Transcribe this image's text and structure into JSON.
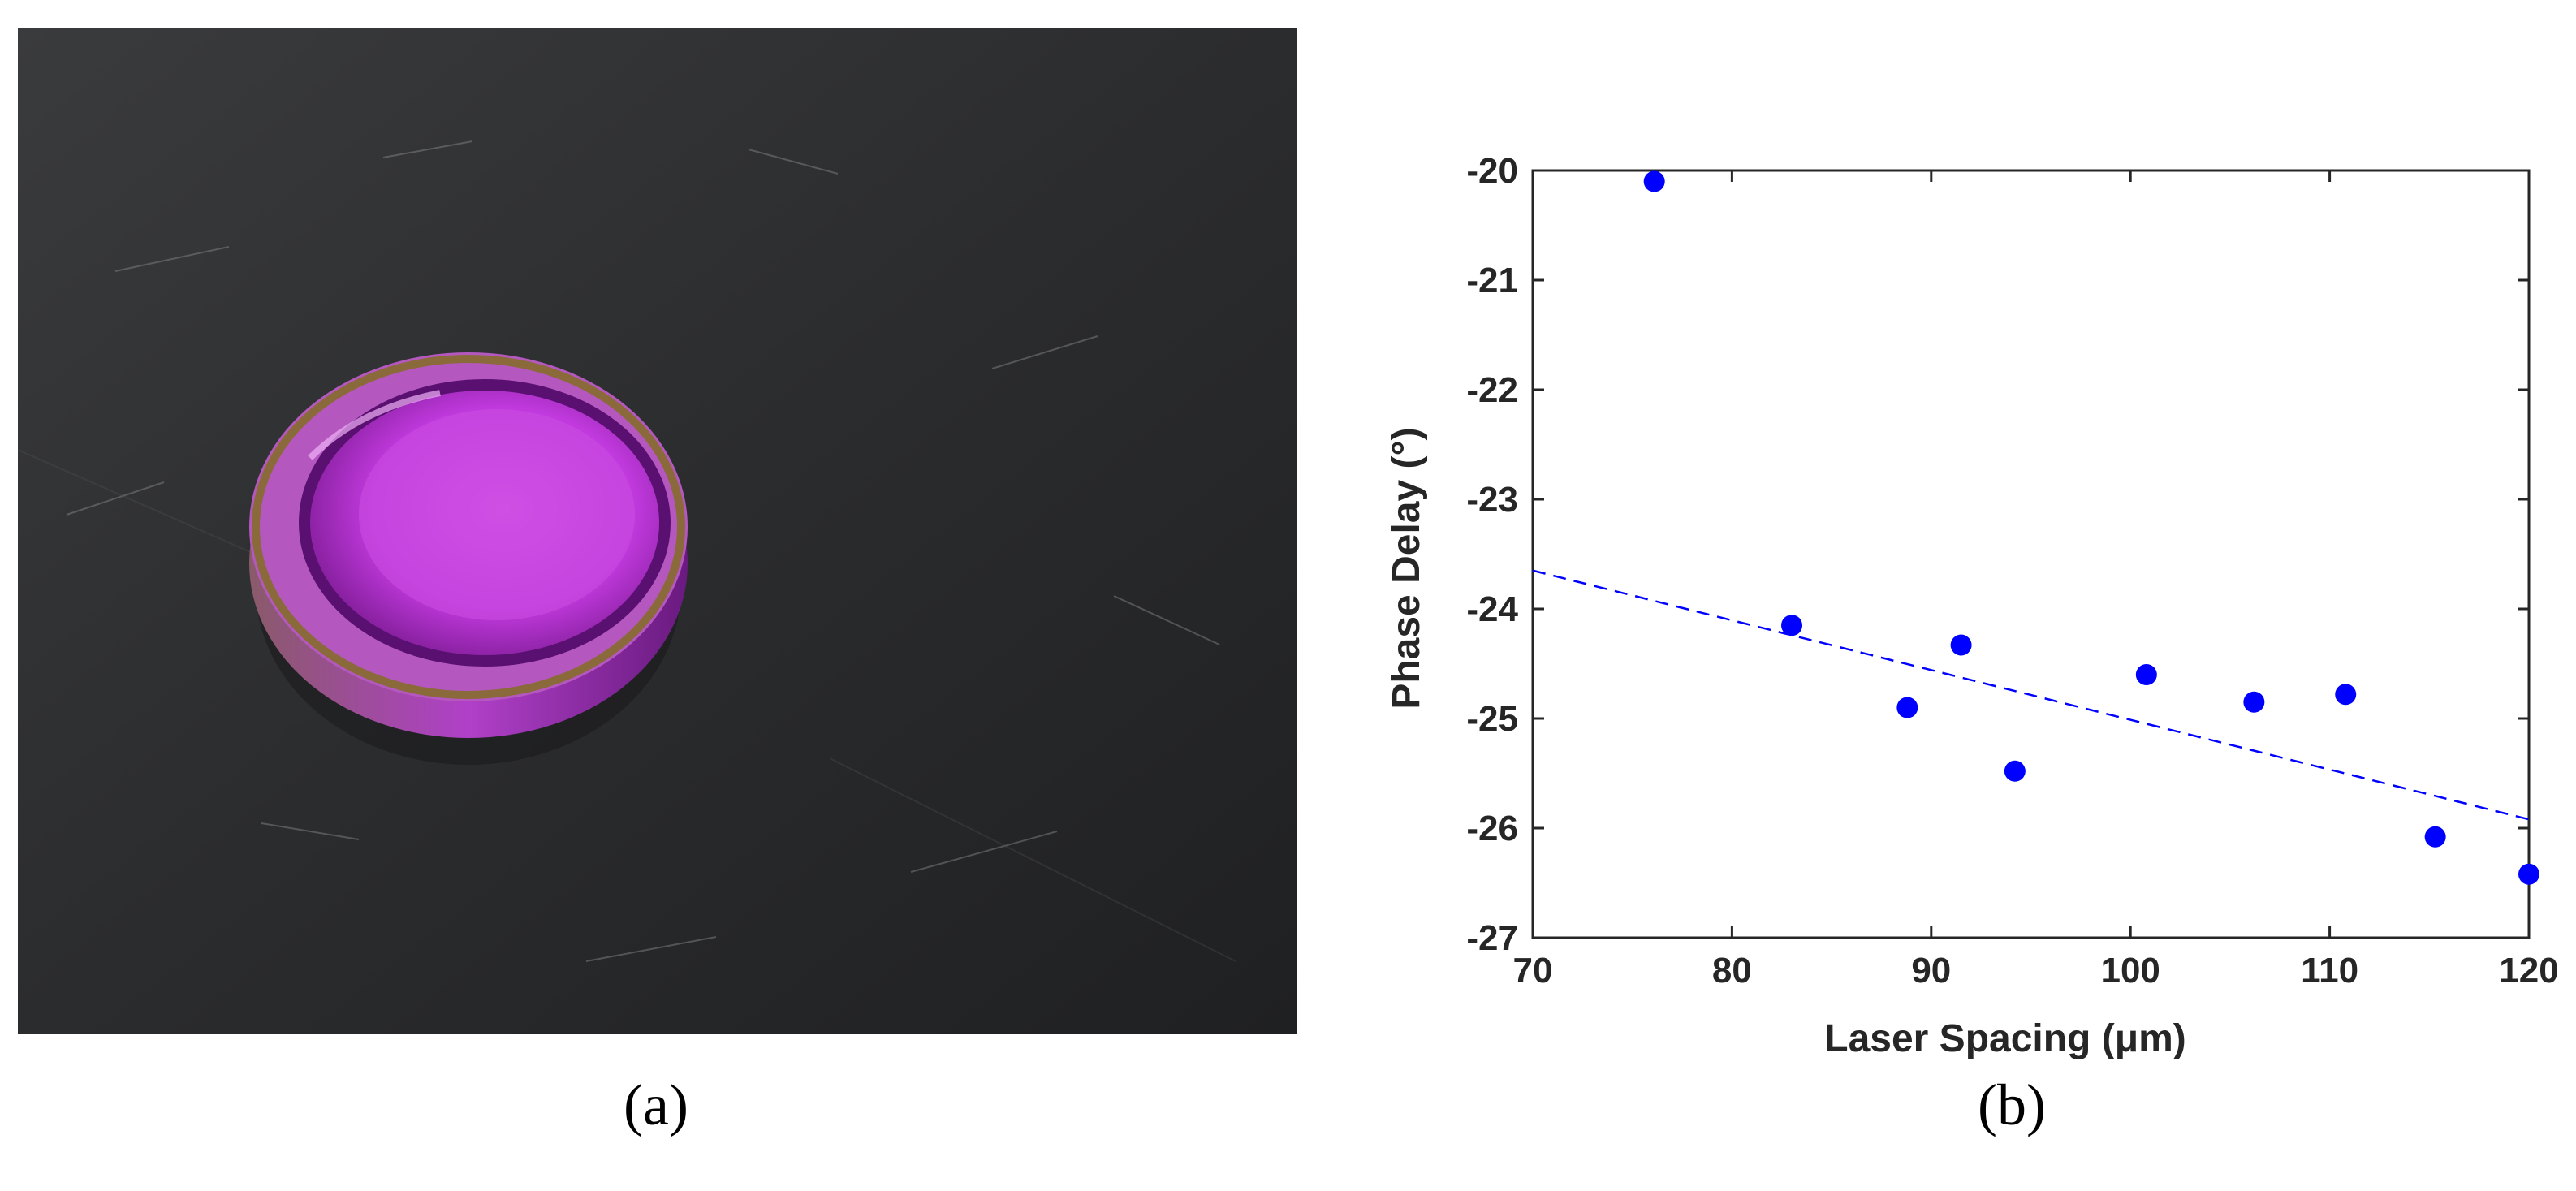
{
  "captions": {
    "a": "(a)",
    "b": "(b)"
  },
  "photo": {
    "subject": "magenta-coated-disk",
    "colors": {
      "surface": "#2a2b2d",
      "disk": "#c23adf",
      "rim": "#8a6a3a"
    }
  },
  "chart_data": {
    "type": "scatter",
    "xlabel": "Laser Spacing (μm)",
    "ylabel": "Phase Delay (°)",
    "xlim": [
      70,
      120
    ],
    "ylim": [
      -27,
      -20
    ],
    "xticks": [
      70,
      80,
      90,
      100,
      110,
      120
    ],
    "yticks": [
      -20,
      -21,
      -22,
      -23,
      -24,
      -25,
      -26,
      -27
    ],
    "grid": false,
    "series": [
      {
        "marker": "filled-circle",
        "color": "#0000ff",
        "points": [
          [
            76.1,
            -20.1
          ],
          [
            83.0,
            -24.15
          ],
          [
            88.8,
            -24.9
          ],
          [
            91.5,
            -24.33
          ],
          [
            94.2,
            -25.48
          ],
          [
            100.8,
            -24.6
          ],
          [
            106.2,
            -24.85
          ],
          [
            110.8,
            -24.78
          ],
          [
            115.3,
            -26.08
          ],
          [
            120.0,
            -26.42
          ]
        ]
      }
    ],
    "trendline": {
      "style": "dashed",
      "color": "#0000ff",
      "x": [
        70,
        120
      ],
      "y": [
        -23.65,
        -25.92
      ]
    }
  }
}
